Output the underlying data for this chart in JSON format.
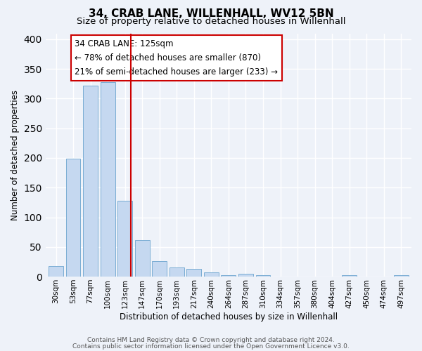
{
  "title": "34, CRAB LANE, WILLENHALL, WV12 5BN",
  "subtitle": "Size of property relative to detached houses in Willenhall",
  "xlabel": "Distribution of detached houses by size in Willenhall",
  "ylabel": "Number of detached properties",
  "bar_labels": [
    "30sqm",
    "53sqm",
    "77sqm",
    "100sqm",
    "123sqm",
    "147sqm",
    "170sqm",
    "193sqm",
    "217sqm",
    "240sqm",
    "264sqm",
    "287sqm",
    "310sqm",
    "334sqm",
    "357sqm",
    "380sqm",
    "404sqm",
    "427sqm",
    "450sqm",
    "474sqm",
    "497sqm"
  ],
  "bar_values": [
    18,
    199,
    322,
    328,
    128,
    61,
    26,
    16,
    13,
    7,
    2,
    5,
    2,
    0,
    0,
    0,
    0,
    2,
    0,
    0,
    3
  ],
  "bar_color": "#c5d8f0",
  "bar_edge_color": "#7aadd4",
  "vline_color": "#cc0000",
  "vline_bar_index": 4,
  "annotation_title": "34 CRAB LANE: 125sqm",
  "annotation_line1": "← 78% of detached houses are smaller (870)",
  "annotation_line2": "21% of semi-detached houses are larger (233) →",
  "annotation_box_color": "#ffffff",
  "annotation_box_edge": "#cc0000",
  "ylim": [
    0,
    410
  ],
  "yticks": [
    0,
    50,
    100,
    150,
    200,
    250,
    300,
    350,
    400
  ],
  "footer_line1": "Contains HM Land Registry data © Crown copyright and database right 2024.",
  "footer_line2": "Contains public sector information licensed under the Open Government Licence v3.0.",
  "bg_color": "#eef2f9",
  "plot_bg_color": "#eef2f9",
  "grid_color": "#ffffff",
  "title_fontsize": 11,
  "subtitle_fontsize": 9.5
}
